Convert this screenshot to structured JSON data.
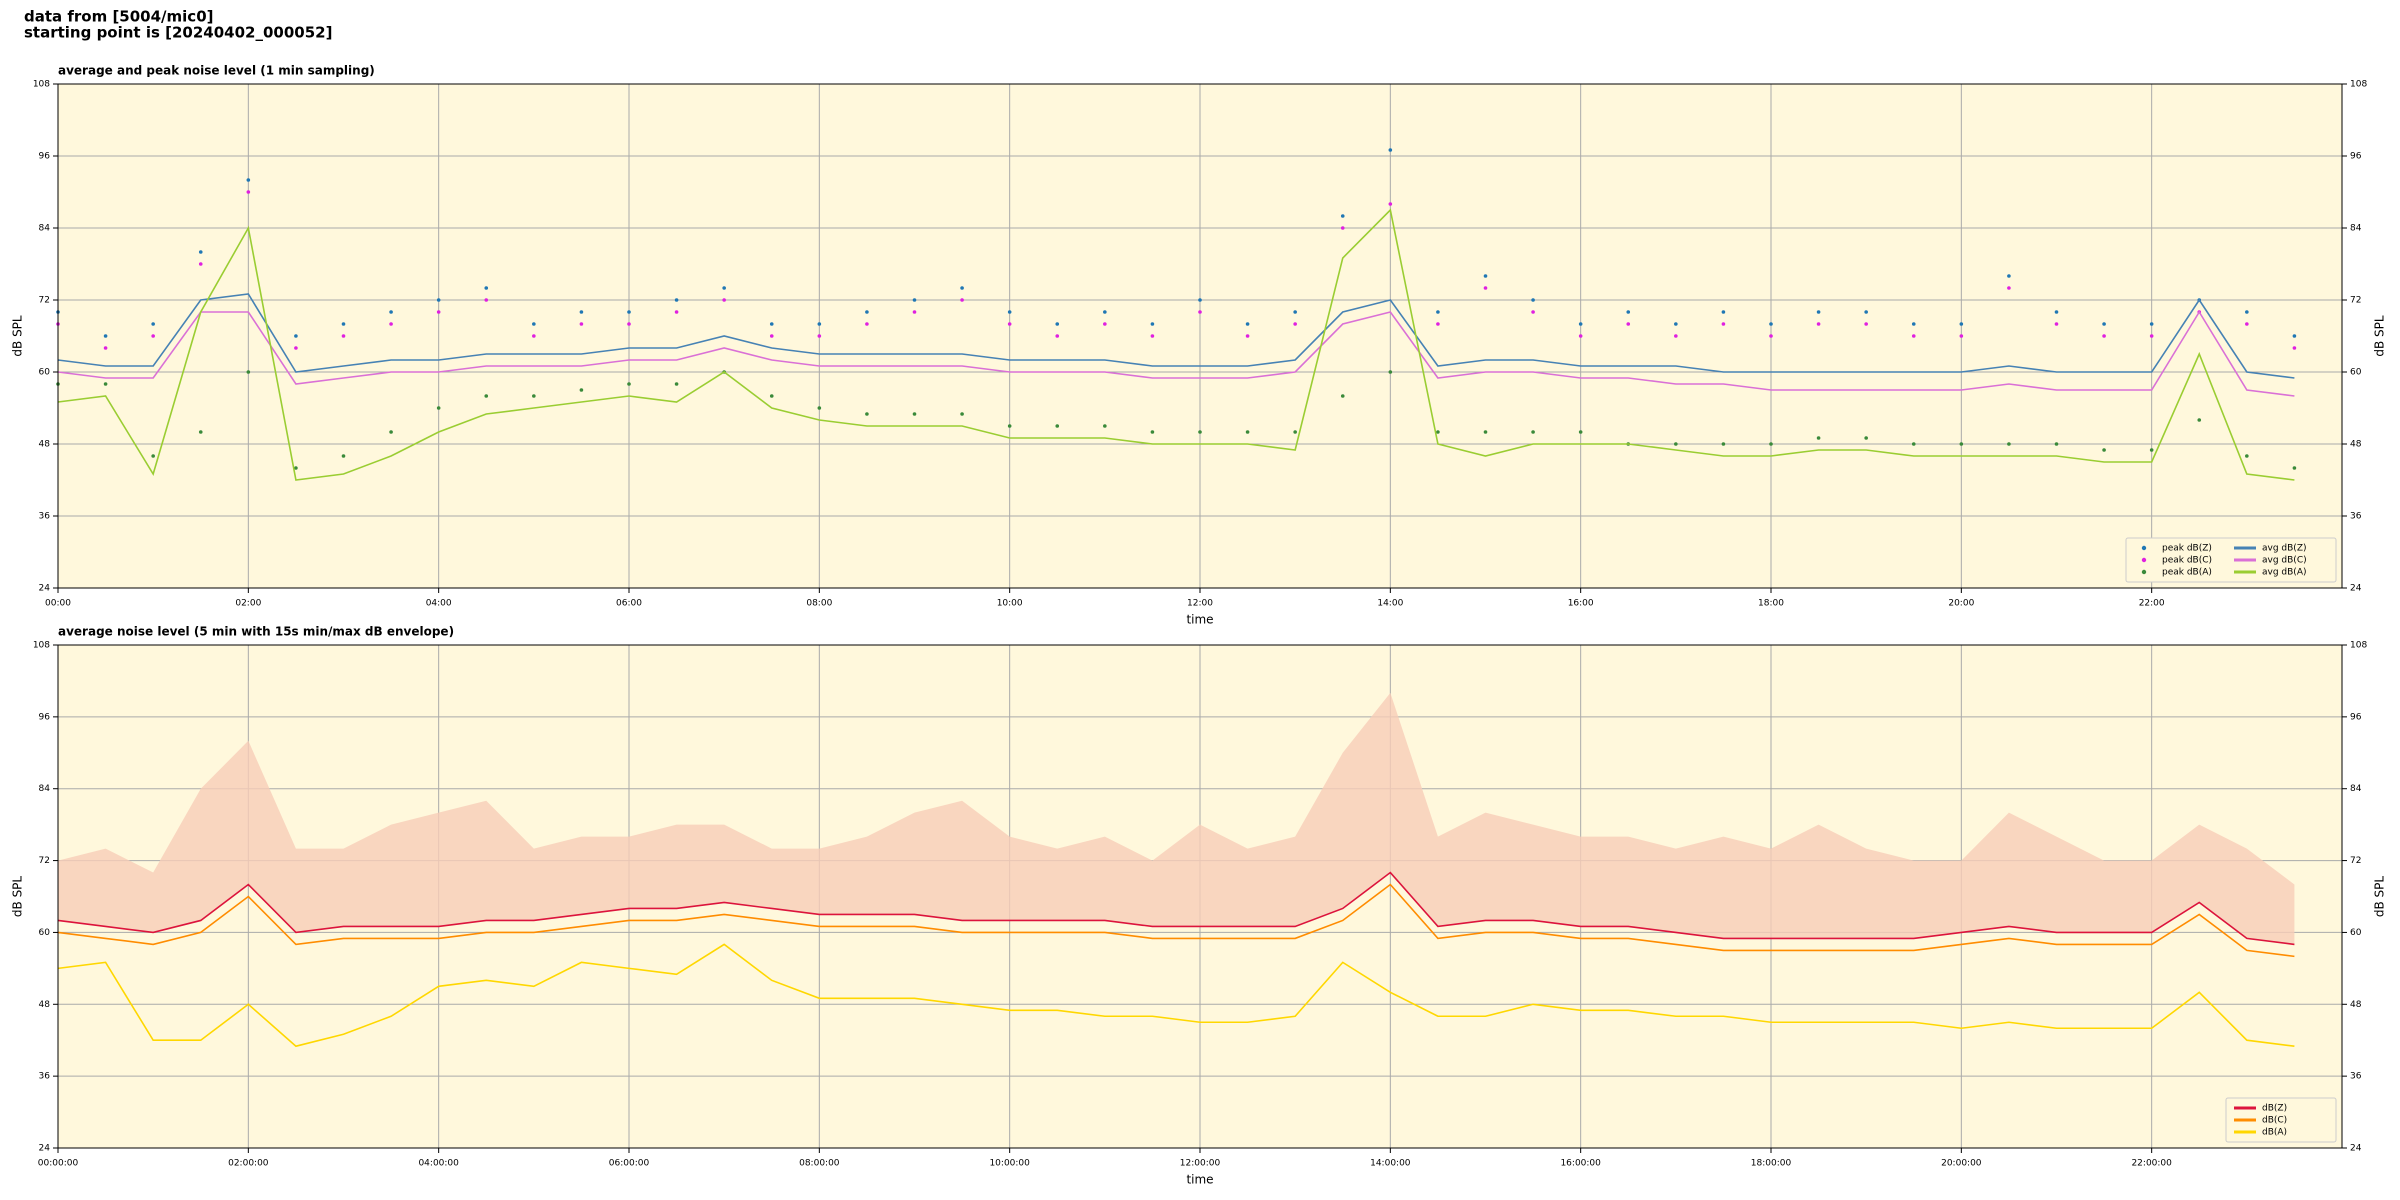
{
  "header": {
    "source": "data from [5004/mic0]",
    "start": "starting point is [20240402_000052]"
  },
  "chart_data": [
    {
      "type": "line",
      "title": "average and peak noise level (1 min sampling)",
      "xlabel": "time",
      "ylabel": "dB SPL",
      "xlim": [
        0,
        24
      ],
      "ylim": [
        24,
        108
      ],
      "yticks": [
        24,
        36,
        48,
        60,
        72,
        84,
        96,
        108
      ],
      "xticks": [
        {
          "value": 0,
          "label": "00:00"
        },
        {
          "value": 2,
          "label": "02:00"
        },
        {
          "value": 4,
          "label": "04:00"
        },
        {
          "value": 6,
          "label": "06:00"
        },
        {
          "value": 8,
          "label": "08:00"
        },
        {
          "value": 10,
          "label": "10:00"
        },
        {
          "value": 12,
          "label": "12:00"
        },
        {
          "value": 14,
          "label": "14:00"
        },
        {
          "value": 16,
          "label": "16:00"
        },
        {
          "value": 18,
          "label": "18:00"
        },
        {
          "value": 20,
          "label": "20:00"
        },
        {
          "value": 22,
          "label": "22:00"
        }
      ],
      "grid": true,
      "legend": "lower right",
      "legend_columns": 2,
      "background": "#fff8dc",
      "x": [
        0,
        0.5,
        1,
        1.5,
        2,
        2.5,
        3,
        3.5,
        4,
        4.5,
        5,
        5.5,
        6,
        6.5,
        7,
        7.5,
        8,
        8.5,
        9,
        9.5,
        10,
        10.5,
        11,
        11.5,
        12,
        12.5,
        13,
        13.5,
        14,
        14.5,
        15,
        15.5,
        16,
        16.5,
        17,
        17.5,
        18,
        18.5,
        19,
        19.5,
        20,
        20.5,
        21,
        21.5,
        22,
        22.5,
        23,
        23.5
      ],
      "series": [
        {
          "name": "peak dB(Z)",
          "style": "dots",
          "color": "#1f77b4",
          "values": [
            70,
            66,
            68,
            80,
            92,
            66,
            68,
            70,
            72,
            74,
            68,
            70,
            70,
            72,
            74,
            68,
            68,
            70,
            72,
            74,
            70,
            68,
            70,
            68,
            72,
            68,
            70,
            86,
            97,
            70,
            76,
            72,
            68,
            70,
            68,
            70,
            68,
            70,
            70,
            68,
            68,
            76,
            70,
            68,
            68,
            72,
            70,
            66
          ]
        },
        {
          "name": "peak dB(C)",
          "style": "dots",
          "color": "#e020e0",
          "values": [
            68,
            64,
            66,
            78,
            90,
            64,
            66,
            68,
            70,
            72,
            66,
            68,
            68,
            70,
            72,
            66,
            66,
            68,
            70,
            72,
            68,
            66,
            68,
            66,
            70,
            66,
            68,
            84,
            88,
            68,
            74,
            70,
            66,
            68,
            66,
            68,
            66,
            68,
            68,
            66,
            66,
            74,
            68,
            66,
            66,
            70,
            68,
            64
          ]
        },
        {
          "name": "peak dB(A)",
          "style": "dots",
          "color": "#3a8a3a",
          "values": [
            58,
            58,
            46,
            50,
            60,
            44,
            46,
            50,
            54,
            56,
            56,
            57,
            58,
            58,
            60,
            56,
            54,
            53,
            53,
            53,
            51,
            51,
            51,
            50,
            50,
            50,
            50,
            56,
            60,
            50,
            50,
            50,
            50,
            48,
            48,
            48,
            48,
            49,
            49,
            48,
            48,
            48,
            48,
            47,
            47,
            52,
            46,
            44
          ]
        },
        {
          "name": "avg dB(Z)",
          "style": "line",
          "color": "#4682b4",
          "values": [
            62,
            61,
            61,
            72,
            73,
            60,
            61,
            62,
            62,
            63,
            63,
            63,
            64,
            64,
            66,
            64,
            63,
            63,
            63,
            63,
            62,
            62,
            62,
            61,
            61,
            61,
            62,
            70,
            72,
            61,
            62,
            62,
            61,
            61,
            61,
            60,
            60,
            60,
            60,
            60,
            60,
            61,
            60,
            60,
            60,
            72,
            60,
            59
          ]
        },
        {
          "name": "avg dB(C)",
          "style": "line",
          "color": "#da70d6",
          "values": [
            60,
            59,
            59,
            70,
            70,
            58,
            59,
            60,
            60,
            61,
            61,
            61,
            62,
            62,
            64,
            62,
            61,
            61,
            61,
            61,
            60,
            60,
            60,
            59,
            59,
            59,
            60,
            68,
            70,
            59,
            60,
            60,
            59,
            59,
            58,
            58,
            57,
            57,
            57,
            57,
            57,
            58,
            57,
            57,
            57,
            70,
            57,
            56
          ]
        },
        {
          "name": "avg dB(A)",
          "style": "line",
          "color": "#9acd32",
          "values": [
            55,
            56,
            43,
            70,
            84,
            42,
            43,
            46,
            50,
            53,
            54,
            55,
            56,
            55,
            60,
            54,
            52,
            51,
            51,
            51,
            49,
            49,
            49,
            48,
            48,
            48,
            47,
            79,
            87,
            48,
            46,
            48,
            48,
            48,
            47,
            46,
            46,
            47,
            47,
            46,
            46,
            46,
            46,
            45,
            45,
            63,
            43,
            42
          ]
        }
      ]
    },
    {
      "type": "line",
      "title": "average noise level (5 min with 15s min/max dB envelope)",
      "xlabel": "time",
      "ylabel": "dB SPL",
      "xlim": [
        0,
        24
      ],
      "ylim": [
        24,
        108
      ],
      "yticks": [
        24,
        36,
        48,
        60,
        72,
        84,
        96,
        108
      ],
      "xticks": [
        {
          "value": 0,
          "label": "00:00:00"
        },
        {
          "value": 2,
          "label": "02:00:00"
        },
        {
          "value": 4,
          "label": "04:00:00"
        },
        {
          "value": 6,
          "label": "06:00:00"
        },
        {
          "value": 8,
          "label": "08:00:00"
        },
        {
          "value": 10,
          "label": "10:00:00"
        },
        {
          "value": 12,
          "label": "12:00:00"
        },
        {
          "value": 14,
          "label": "14:00:00"
        },
        {
          "value": 16,
          "label": "16:00:00"
        },
        {
          "value": 18,
          "label": "18:00:00"
        },
        {
          "value": 20,
          "label": "20:00:00"
        },
        {
          "value": 22,
          "label": "22:00:00"
        }
      ],
      "grid": true,
      "legend": "lower right",
      "legend_columns": 1,
      "background": "#fff8dc",
      "x": [
        0,
        0.5,
        1,
        1.5,
        2,
        2.5,
        3,
        3.5,
        4,
        4.5,
        5,
        5.5,
        6,
        6.5,
        7,
        7.5,
        8,
        8.5,
        9,
        9.5,
        10,
        10.5,
        11,
        11.5,
        12,
        12.5,
        13,
        13.5,
        14,
        14.5,
        15,
        15.5,
        16,
        16.5,
        17,
        17.5,
        18,
        18.5,
        19,
        19.5,
        20,
        20.5,
        21,
        21.5,
        22,
        22.5,
        23,
        23.5
      ],
      "envelope": {
        "color": "#f8cdb8",
        "values": [
          72,
          74,
          70,
          84,
          92,
          74,
          74,
          78,
          80,
          82,
          74,
          76,
          76,
          78,
          78,
          74,
          74,
          76,
          80,
          82,
          76,
          74,
          76,
          72,
          78,
          74,
          76,
          90,
          100,
          76,
          80,
          78,
          76,
          76,
          74,
          76,
          74,
          78,
          74,
          72,
          72,
          80,
          76,
          72,
          72,
          78,
          74,
          68
        ]
      },
      "series": [
        {
          "name": "dB(Z)",
          "style": "line",
          "color": "#dc143c",
          "values": [
            62,
            61,
            60,
            62,
            68,
            60,
            61,
            61,
            61,
            62,
            62,
            63,
            64,
            64,
            65,
            64,
            63,
            63,
            63,
            62,
            62,
            62,
            62,
            61,
            61,
            61,
            61,
            64,
            70,
            61,
            62,
            62,
            61,
            61,
            60,
            59,
            59,
            59,
            59,
            59,
            60,
            61,
            60,
            60,
            60,
            65,
            59,
            58
          ]
        },
        {
          "name": "dB(C)",
          "style": "line",
          "color": "#ff8c00",
          "values": [
            60,
            59,
            58,
            60,
            66,
            58,
            59,
            59,
            59,
            60,
            60,
            61,
            62,
            62,
            63,
            62,
            61,
            61,
            61,
            60,
            60,
            60,
            60,
            59,
            59,
            59,
            59,
            62,
            68,
            59,
            60,
            60,
            59,
            59,
            58,
            57,
            57,
            57,
            57,
            57,
            58,
            59,
            58,
            58,
            58,
            63,
            57,
            56
          ]
        },
        {
          "name": "dB(A)",
          "style": "line",
          "color": "#ffd700",
          "values": [
            54,
            55,
            42,
            42,
            48,
            41,
            43,
            46,
            51,
            52,
            51,
            55,
            54,
            53,
            58,
            52,
            49,
            49,
            49,
            48,
            47,
            47,
            46,
            46,
            45,
            45,
            46,
            55,
            50,
            46,
            46,
            48,
            47,
            47,
            46,
            46,
            45,
            45,
            45,
            45,
            44,
            45,
            44,
            44,
            44,
            50,
            42,
            41
          ]
        }
      ]
    }
  ]
}
